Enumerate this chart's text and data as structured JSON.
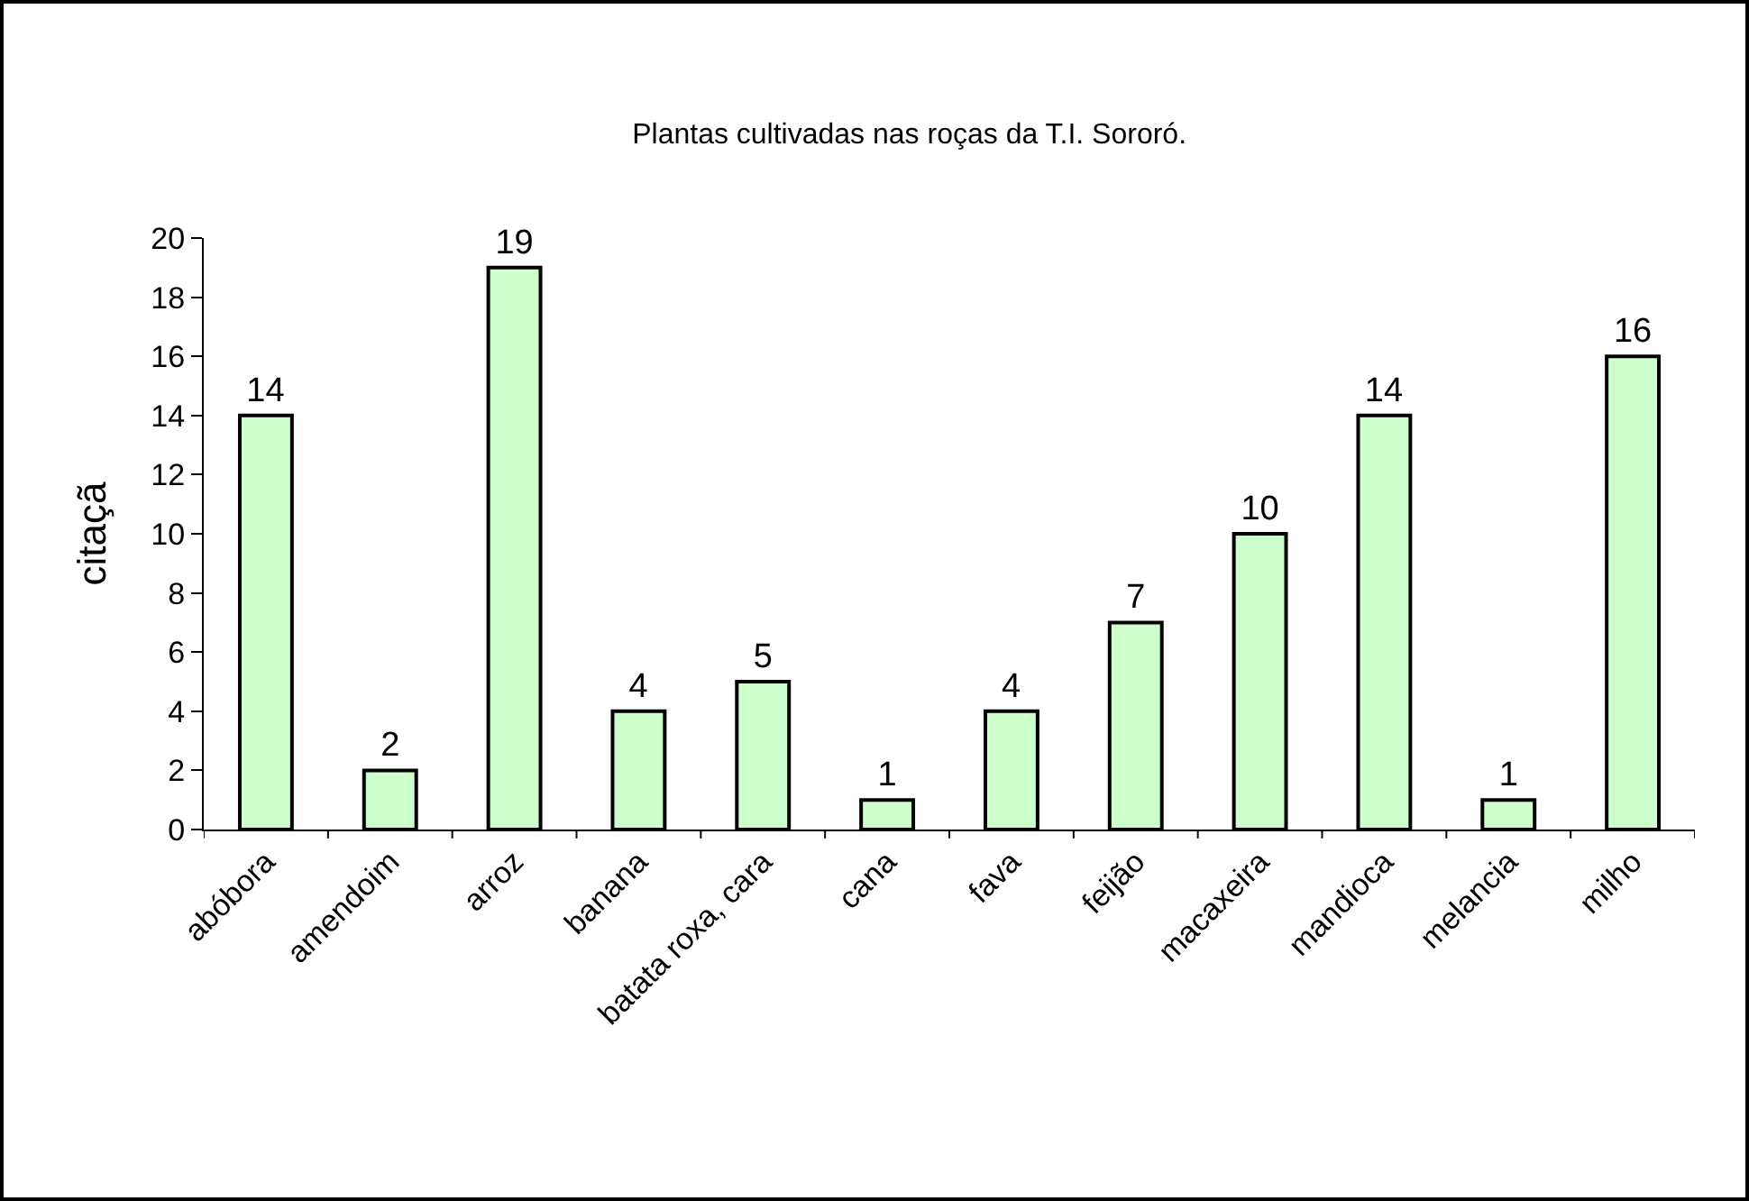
{
  "chart_data": {
    "type": "bar",
    "title": "Plantas cultivadas nas roças da T.I. Sororó.",
    "ylabel": "citaçã",
    "categories": [
      "abóbora",
      "amendoim",
      "arroz",
      "banana",
      "batata roxa, cara",
      "cana",
      "fava",
      "feijão",
      "macaxeira",
      "mandioca",
      "melancia",
      "milho"
    ],
    "values": [
      14,
      2,
      19,
      4,
      5,
      1,
      4,
      7,
      10,
      14,
      1,
      16
    ],
    "color": "#ccffcc",
    "ylim": [
      0,
      20
    ],
    "yticks": [
      0,
      2,
      4,
      6,
      8,
      10,
      12,
      14,
      16,
      18,
      20
    ],
    "grid": false,
    "data_labels": true
  }
}
